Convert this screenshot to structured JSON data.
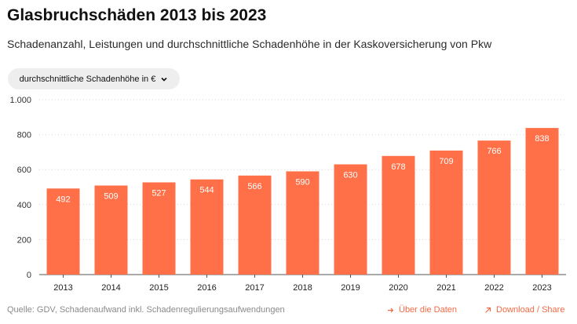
{
  "header": {
    "title": "Glasbruchschäden 2013 bis 2023",
    "subtitle": "Schadenanzahl, Leistungen und durchschnittliche Schadenhöhe in der Kaskoversicherung von Pkw"
  },
  "controls": {
    "metric_select": "durchschnittliche Schadenhöhe in €",
    "chevron_icon": "chevron-down-icon"
  },
  "colors": {
    "bar": "#ff7048",
    "bar_label": "#ffffff",
    "link": "#f26a45",
    "grid": "#d4d4d4"
  },
  "chart_data": {
    "type": "bar",
    "title": "",
    "xlabel": "",
    "ylabel": "",
    "categories": [
      "2013",
      "2014",
      "2015",
      "2016",
      "2017",
      "2018",
      "2019",
      "2020",
      "2021",
      "2022",
      "2023"
    ],
    "values": [
      492,
      509,
      527,
      544,
      566,
      590,
      630,
      678,
      709,
      766,
      838
    ],
    "ylim": [
      0,
      1000
    ],
    "yticks": [
      0,
      200,
      400,
      600,
      800,
      1000
    ],
    "ytick_labels": [
      "0",
      "200",
      "400",
      "600",
      "800",
      "1.000"
    ],
    "grid": "horizontal dotted",
    "data_labels": true
  },
  "footer": {
    "source": "Quelle: GDV, Schadenaufwand inkl. Schadenregulierungsaufwendungen",
    "about_label": "Über die Daten",
    "share_label": "Download / Share"
  }
}
